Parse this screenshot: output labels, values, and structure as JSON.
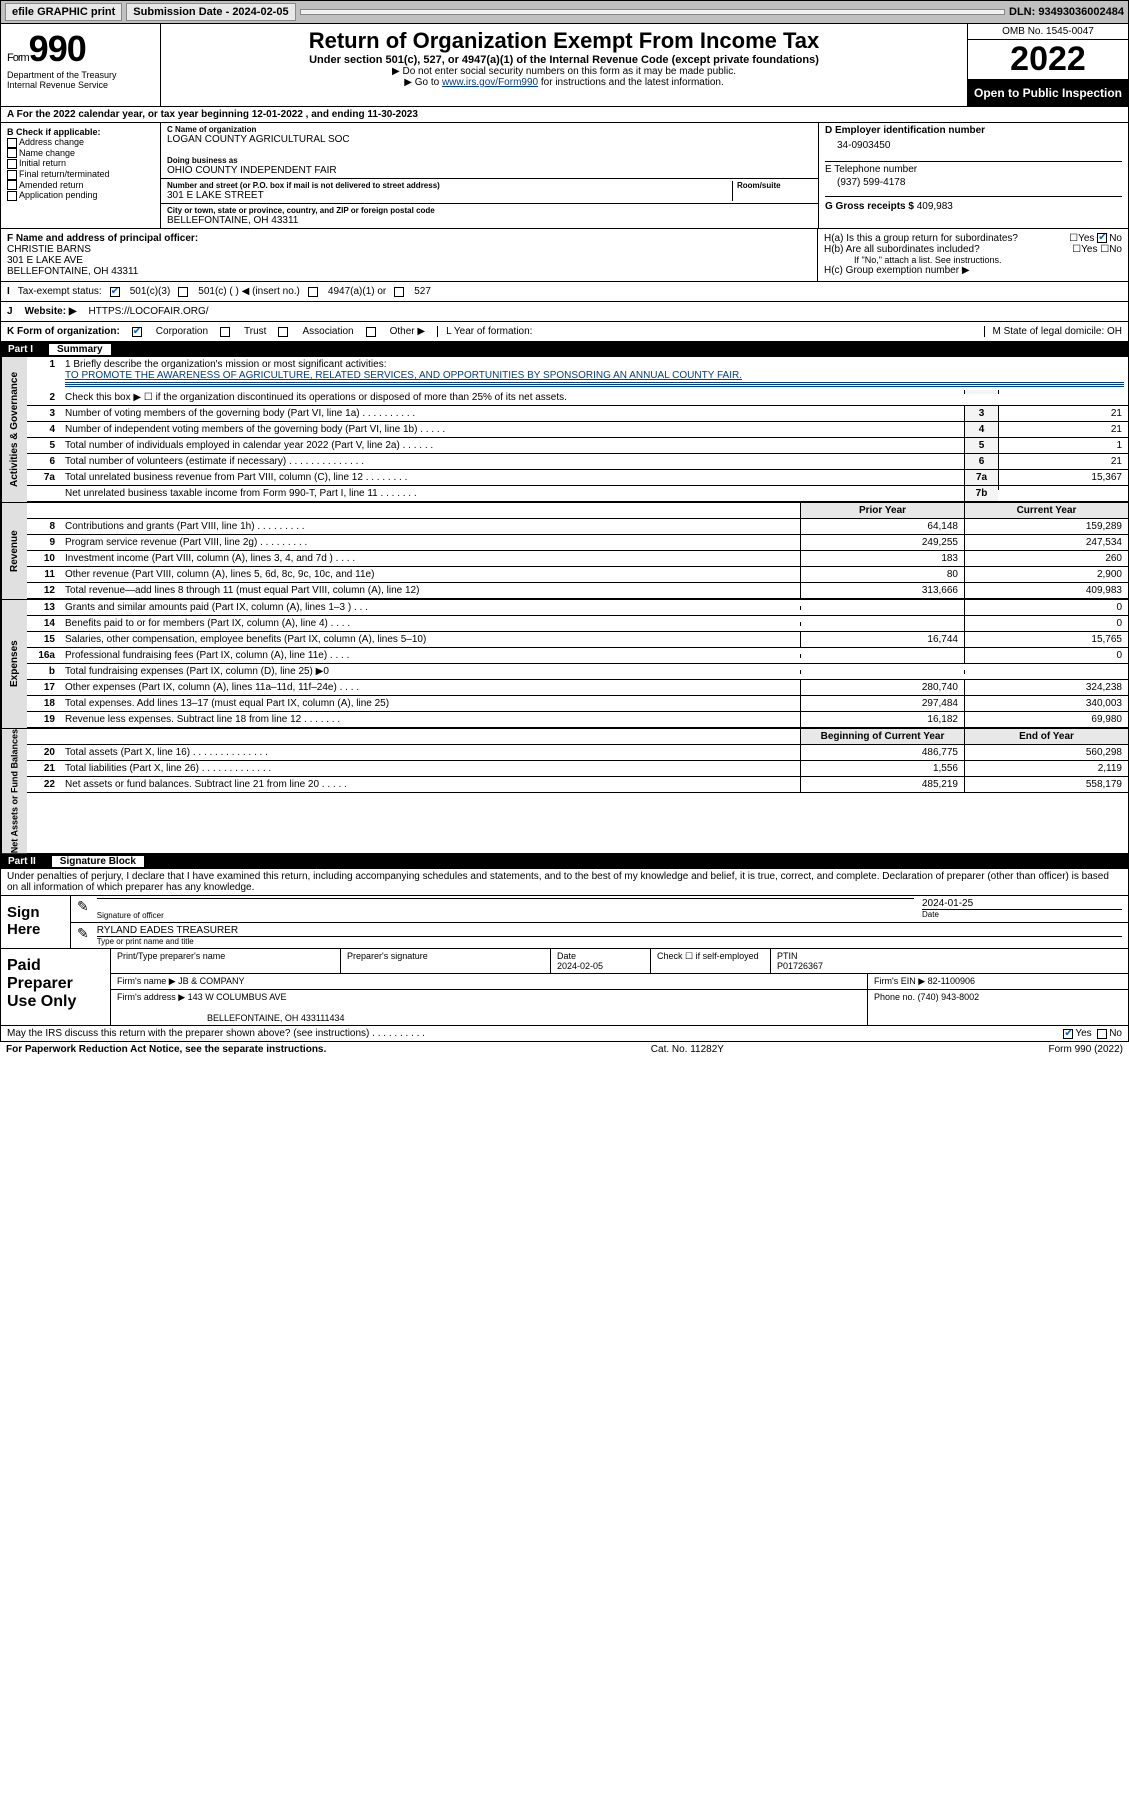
{
  "topbar": {
    "efile": "efile GRAPHIC print",
    "submission_label": "Submission Date - 2024-02-05",
    "dln": "DLN: 93493036002484"
  },
  "header": {
    "form_prefix": "Form",
    "form_number": "990",
    "dept1": "Department of the Treasury",
    "dept2": "Internal Revenue Service",
    "title": "Return of Organization Exempt From Income Tax",
    "sub": "Under section 501(c), 527, or 4947(a)(1) of the Internal Revenue Code (except private foundations)",
    "instr1": "▶ Do not enter social security numbers on this form as it may be made public.",
    "instr2_pre": "▶ Go to ",
    "instr2_link": "www.irs.gov/Form990",
    "instr2_post": " for instructions and the latest information.",
    "omb": "OMB No. 1545-0047",
    "year": "2022",
    "open_public": "Open to Public Inspection"
  },
  "period": "For the 2022 calendar year, or tax year beginning 12-01-2022  , and ending 11-30-2023",
  "sectionB": {
    "title": "B Check if applicable:",
    "opts": [
      "Address change",
      "Name change",
      "Initial return",
      "Final return/terminated",
      "Amended return",
      "Application pending"
    ]
  },
  "sectionC": {
    "name_lbl": "C Name of organization",
    "name": "LOGAN COUNTY AGRICULTURAL SOC",
    "dba_lbl": "Doing business as",
    "dba": "OHIO COUNTY INDEPENDENT FAIR",
    "addr_lbl": "Number and street (or P.O. box if mail is not delivered to street address)",
    "room_lbl": "Room/suite",
    "addr": "301 E LAKE STREET",
    "city_lbl": "City or town, state or province, country, and ZIP or foreign postal code",
    "city": "BELLEFONTAINE, OH  43311"
  },
  "sectionD": {
    "lbl": "D Employer identification number",
    "val": "34-0903450"
  },
  "sectionE": {
    "lbl": "E Telephone number",
    "val": "(937) 599-4178"
  },
  "sectionG": {
    "lbl": "G Gross receipts $ ",
    "val": "409,983"
  },
  "sectionF": {
    "lbl": "F Name and address of principal officer:",
    "name": "CHRISTIE BARNS",
    "addr1": "301 E LAKE AVE",
    "addr2": "BELLEFONTAINE, OH  43311"
  },
  "sectionH": {
    "a": "H(a)  Is this a group return for subordinates?",
    "b": "H(b)  Are all subordinates included?",
    "b_note": "If \"No,\" attach a list. See instructions.",
    "c": "H(c)  Group exemption number ▶",
    "yes": "Yes",
    "no": "No"
  },
  "tax_status": {
    "lbl": "Tax-exempt status:",
    "c3": "501(c)(3)",
    "c_ins": "501(c) (  ) ◀ (insert no.)",
    "a1": "4947(a)(1) or",
    "s527": "527"
  },
  "website": {
    "lbl": "Website: ▶",
    "val": "HTTPS://LOCOFAIR.ORG/"
  },
  "form_org": {
    "lbl": "K Form of organization:",
    "corp": "Corporation",
    "trust": "Trust",
    "assoc": "Association",
    "other": "Other ▶",
    "L": "L Year of formation:",
    "M": "M State of legal domicile: OH"
  },
  "partI": {
    "bar": "Part I",
    "title": "Summary"
  },
  "mission": {
    "q": "1  Briefly describe the organization's mission or most significant activities:",
    "txt": "TO PROMOTE THE AWARENESS OF AGRICULTURE, RELATED SERVICES, AND OPPORTUNITIES BY SPONSORING AN ANNUAL COUNTY FAIR."
  },
  "gov_lines": [
    {
      "n": "2",
      "t": "Check this box ▶ ☐  if the organization discontinued its operations or disposed of more than 25% of its net assets.",
      "ln": "",
      "v": ""
    },
    {
      "n": "3",
      "t": "Number of voting members of the governing body (Part VI, line 1a)   .   .   .   .   .   .   .   .   .   .",
      "ln": "3",
      "v": "21"
    },
    {
      "n": "4",
      "t": "Number of independent voting members of the governing body (Part VI, line 1b)  .   .   .   .   .",
      "ln": "4",
      "v": "21"
    },
    {
      "n": "5",
      "t": "Total number of individuals employed in calendar year 2022 (Part V, line 2a)  .   .   .   .   .   .",
      "ln": "5",
      "v": "1"
    },
    {
      "n": "6",
      "t": "Total number of volunteers (estimate if necessary)  .   .   .   .   .   .   .   .   .   .   .   .   .   .",
      "ln": "6",
      "v": "21"
    },
    {
      "n": "7a",
      "t": "Total unrelated business revenue from Part VIII, column (C), line 12  .   .   .   .   .   .   .   .",
      "ln": "7a",
      "v": "15,367"
    },
    {
      "n": "",
      "t": "Net unrelated business taxable income from Form 990-T, Part I, line 11  .   .   .   .   .   .   .",
      "ln": "7b",
      "v": ""
    }
  ],
  "year_headers": {
    "prior": "Prior Year",
    "current": "Current Year",
    "begin": "Beginning of Current Year",
    "end": "End of Year"
  },
  "revenue": [
    {
      "n": "8",
      "t": "Contributions and grants (Part VIII, line 1h)  .   .   .   .   .   .   .   .   .",
      "p": "64,148",
      "c": "159,289"
    },
    {
      "n": "9",
      "t": "Program service revenue (Part VIII, line 2g)  .   .   .   .   .   .   .   .   .",
      "p": "249,255",
      "c": "247,534"
    },
    {
      "n": "10",
      "t": "Investment income (Part VIII, column (A), lines 3, 4, and 7d )  .   .   .   .",
      "p": "183",
      "c": "260"
    },
    {
      "n": "11",
      "t": "Other revenue (Part VIII, column (A), lines 5, 6d, 8c, 9c, 10c, and 11e)",
      "p": "80",
      "c": "2,900"
    },
    {
      "n": "12",
      "t": "Total revenue—add lines 8 through 11 (must equal Part VIII, column (A), line 12)",
      "p": "313,666",
      "c": "409,983"
    }
  ],
  "expenses": [
    {
      "n": "13",
      "t": "Grants and similar amounts paid (Part IX, column (A), lines 1–3 )  .   .   .",
      "p": "",
      "c": "0"
    },
    {
      "n": "14",
      "t": "Benefits paid to or for members (Part IX, column (A), line 4)  .   .   .   .",
      "p": "",
      "c": "0"
    },
    {
      "n": "15",
      "t": "Salaries, other compensation, employee benefits (Part IX, column (A), lines 5–10)",
      "p": "16,744",
      "c": "15,765"
    },
    {
      "n": "16a",
      "t": "Professional fundraising fees (Part IX, column (A), line 11e)  .   .   .   .",
      "p": "",
      "c": "0"
    },
    {
      "n": "b",
      "t": "Total fundraising expenses (Part IX, column (D), line 25) ▶0",
      "p": "",
      "c": ""
    },
    {
      "n": "17",
      "t": "Other expenses (Part IX, column (A), lines 11a–11d, 11f–24e)  .   .   .   .",
      "p": "280,740",
      "c": "324,238"
    },
    {
      "n": "18",
      "t": "Total expenses. Add lines 13–17 (must equal Part IX, column (A), line 25)",
      "p": "297,484",
      "c": "340,003"
    },
    {
      "n": "19",
      "t": "Revenue less expenses. Subtract line 18 from line 12  .    .   .   .   .   .   .",
      "p": "16,182",
      "c": "69,980"
    }
  ],
  "netassets": [
    {
      "n": "20",
      "t": "Total assets (Part X, line 16)  .   .   .   .   .   .   .   .   .   .   .   .   .   .",
      "p": "486,775",
      "c": "560,298"
    },
    {
      "n": "21",
      "t": "Total liabilities (Part X, line 26)  .   .   .   .   .   .   .   .   .   .   .   .   .",
      "p": "1,556",
      "c": "2,119"
    },
    {
      "n": "22",
      "t": "Net assets or fund balances. Subtract line 21 from line 20   .   .   .   .   .",
      "p": "485,219",
      "c": "558,179"
    }
  ],
  "tabs": {
    "gov": "Activities & Governance",
    "rev": "Revenue",
    "exp": "Expenses",
    "na": "Net Assets or Fund Balances"
  },
  "partII": {
    "bar": "Part II",
    "title": "Signature Block"
  },
  "penalties": "Under penalties of perjury, I declare that I have examined this return, including accompanying schedules and statements, and to the best of my knowledge and belief, it is true, correct, and complete. Declaration of preparer (other than officer) is based on all information of which preparer has any knowledge.",
  "sign": {
    "label": "Sign Here",
    "sig_lbl": "Signature of officer",
    "date": "2024-01-25",
    "date_lbl": "Date",
    "name": "RYLAND EADES TREASURER",
    "name_lbl": "Type or print name and title"
  },
  "preparer": {
    "label": "Paid Preparer Use Only",
    "h1": "Print/Type preparer's name",
    "h2": "Preparer's signature",
    "h3": "Date",
    "date": "2024-02-05",
    "h4": "Check ☐ if self-employed",
    "h5": "PTIN",
    "ptin": "P01726367",
    "firm_lbl": "Firm's name    ▶",
    "firm": "JB & COMPANY",
    "ein_lbl": "Firm's EIN ▶",
    "ein": "82-1100906",
    "addr_lbl": "Firm's address ▶",
    "addr1": "143 W COLUMBUS AVE",
    "addr2": "BELLEFONTAINE, OH  433111434",
    "phone_lbl": "Phone no.",
    "phone": "(740) 943-8002"
  },
  "discuss": {
    "txt": "May the IRS discuss this return with the preparer shown above? (see instructions)   .   .   .   .   .   .   .   .   .   .",
    "yes": "Yes",
    "no": "No"
  },
  "footer": {
    "left": "For Paperwork Reduction Act Notice, see the separate instructions.",
    "mid": "Cat. No. 11282Y",
    "right": "Form 990 (2022)"
  }
}
